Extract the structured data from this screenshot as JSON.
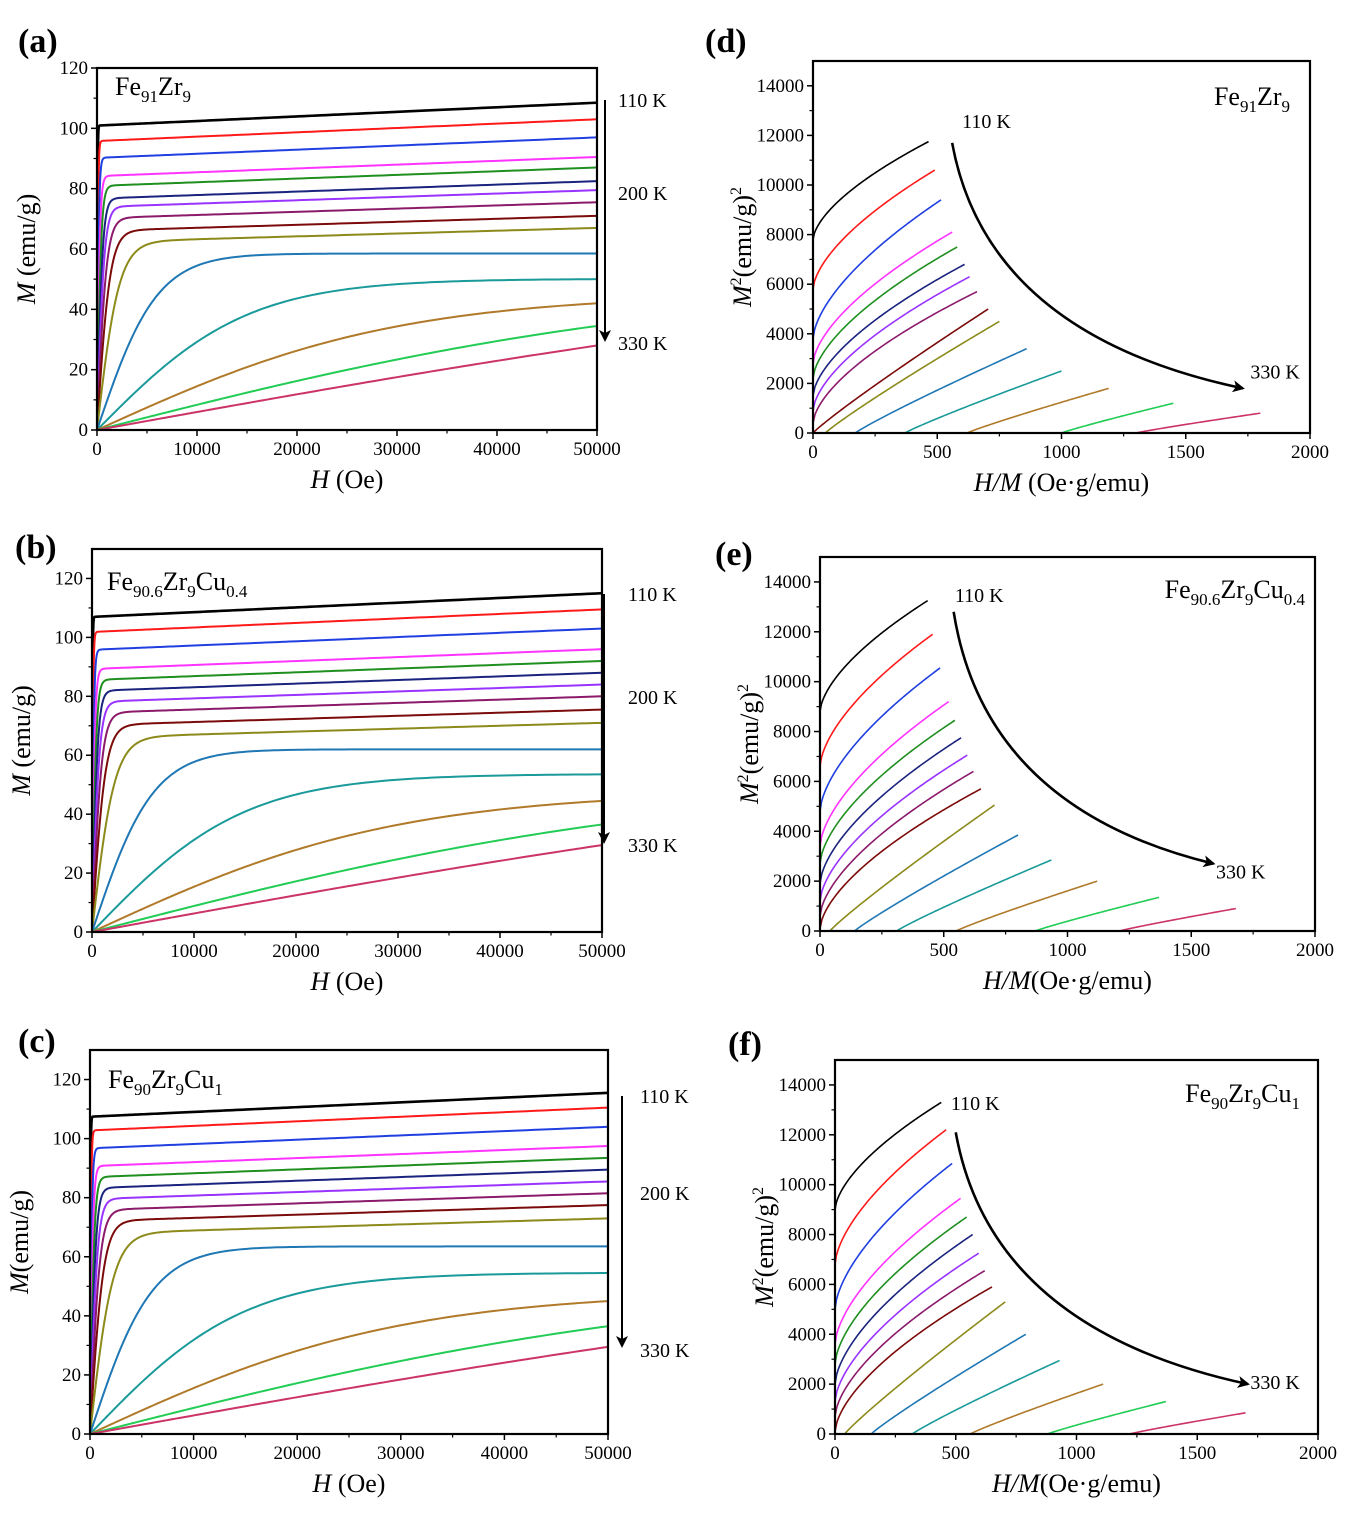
{
  "temperature_labels": {
    "first": "110 K",
    "middle": "200 K",
    "last": "330 K"
  },
  "curve_colors": [
    "#000000",
    "#ff1a1a",
    "#1f3fe0",
    "#ff33ff",
    "#1f8f1f",
    "#1a237e",
    "#9933ff",
    "#8b1a6b",
    "#7b0a0a",
    "#8c8a1a",
    "#1f77b4",
    "#1a9a9a",
    "#b07a2a",
    "#22cc55",
    "#cc3366"
  ],
  "chart_data": [
    {
      "type": "line",
      "panel": "(a)",
      "sample": {
        "base": "Fe",
        "parts": [
          {
            "sub": "91"
          },
          {
            "text": "Zr"
          },
          {
            "sub": "9"
          }
        ]
      },
      "xlabel": {
        "italic": "H",
        "rest": " (Oe)"
      },
      "ylabel": {
        "italic": "M",
        "rest": " (emu/g)"
      },
      "xlim": [
        0,
        50000
      ],
      "ylim": [
        0,
        120
      ],
      "xticks": [
        0,
        10000,
        20000,
        30000,
        40000,
        50000
      ],
      "yticks": [
        0,
        20,
        40,
        60,
        80,
        100,
        120
      ],
      "ms": [
        108.5,
        103,
        97,
        90.5,
        87,
        82.5,
        79.5,
        75.5,
        71,
        67,
        58.5,
        50,
        42,
        34.5,
        28
      ],
      "hc": [
        60,
        120,
        200,
        300,
        420,
        560,
        720,
        950,
        1300,
        2200,
        6000,
        15000,
        30000,
        60000,
        110000
      ],
      "grid": false
    },
    {
      "type": "line",
      "panel": "(b)",
      "sample": {
        "base": "Fe",
        "parts": [
          {
            "sub": "90.6"
          },
          {
            "text": "Zr"
          },
          {
            "sub": "9"
          },
          {
            "text": "Cu"
          },
          {
            "sub": "0.4"
          }
        ]
      },
      "xlabel": {
        "italic": "H",
        "rest": " (Oe)"
      },
      "ylabel": {
        "italic": "M",
        "rest": " (emu/g)"
      },
      "xlim": [
        0,
        50000
      ],
      "ylim": [
        0,
        130
      ],
      "xticks": [
        0,
        10000,
        20000,
        30000,
        40000,
        50000
      ],
      "yticks": [
        0,
        20,
        40,
        60,
        80,
        100,
        120
      ],
      "ms": [
        115,
        109.5,
        103,
        96,
        92,
        88,
        84,
        80,
        75.5,
        71,
        62,
        53.5,
        44.5,
        36.5,
        29.5
      ],
      "hc": [
        60,
        120,
        200,
        300,
        420,
        560,
        720,
        950,
        1300,
        2200,
        6000,
        15000,
        30000,
        60000,
        110000
      ],
      "grid": false
    },
    {
      "type": "line",
      "panel": "(c)",
      "sample": {
        "base": "Fe",
        "parts": [
          {
            "sub": "90"
          },
          {
            "text": "Zr"
          },
          {
            "sub": "9"
          },
          {
            "text": "Cu"
          },
          {
            "sub": "1"
          }
        ]
      },
      "xlabel": {
        "italic": "H",
        "rest": " (Oe)"
      },
      "ylabel": {
        "italic": "M",
        "rest": "(emu/g)"
      },
      "xlim": [
        0,
        50000
      ],
      "ylim": [
        0,
        130
      ],
      "xticks": [
        0,
        10000,
        20000,
        30000,
        40000,
        50000
      ],
      "yticks": [
        0,
        20,
        40,
        60,
        80,
        100,
        120
      ],
      "ms": [
        115.5,
        110.5,
        104,
        97.5,
        93.5,
        89.5,
        85.5,
        81.5,
        77.5,
        73,
        63.5,
        54.5,
        45,
        36.5,
        29.5
      ],
      "hc": [
        60,
        120,
        200,
        300,
        420,
        560,
        720,
        950,
        1300,
        2200,
        6000,
        15000,
        30000,
        60000,
        110000
      ],
      "grid": false
    },
    {
      "type": "line",
      "panel": "(d)",
      "sample": {
        "base": "Fe",
        "parts": [
          {
            "sub": "91"
          },
          {
            "text": "Zr"
          },
          {
            "sub": "9"
          }
        ]
      },
      "xlabel": {
        "italic": "H/M",
        "rest": " (Oe·g/emu)"
      },
      "ylabel": {
        "italic": "M",
        "sup": "2",
        "rest": "(emu/g)",
        "sup2": "2"
      },
      "xlim": [
        0,
        2000
      ],
      "ylim": [
        0,
        15000
      ],
      "xticks": [
        0,
        500,
        1000,
        1500,
        2000
      ],
      "yticks": [
        0,
        2000,
        4000,
        6000,
        8000,
        10000,
        12000,
        14000
      ],
      "curves": [
        {
          "x0": 0,
          "y0": 7800,
          "x1": 465,
          "y1": 11750
        },
        {
          "x0": 0,
          "y0": 5800,
          "x1": 490,
          "y1": 10600
        },
        {
          "x0": 0,
          "y0": 3800,
          "x1": 515,
          "y1": 9400
        },
        {
          "x0": 0,
          "y0": 2800,
          "x1": 560,
          "y1": 8100
        },
        {
          "x0": 0,
          "y0": 2200,
          "x1": 580,
          "y1": 7500
        },
        {
          "x0": 0,
          "y0": 1500,
          "x1": 610,
          "y1": 6800
        },
        {
          "x0": 0,
          "y0": 900,
          "x1": 630,
          "y1": 6300
        },
        {
          "x0": 0,
          "y0": 400,
          "x1": 660,
          "y1": 5700
        },
        {
          "x0": 0,
          "y0": 0,
          "x1": 705,
          "y1": 5000
        },
        {
          "x0": 50,
          "y0": 0,
          "x1": 750,
          "y1": 4500
        },
        {
          "x0": 170,
          "y0": 0,
          "x1": 860,
          "y1": 3400
        },
        {
          "x0": 370,
          "y0": 0,
          "x1": 1000,
          "y1": 2500
        },
        {
          "x0": 620,
          "y0": 0,
          "x1": 1190,
          "y1": 1800
        },
        {
          "x0": 1000,
          "y0": 0,
          "x1": 1450,
          "y1": 1200
        },
        {
          "x0": 1300,
          "y0": 0,
          "x1": 1800,
          "y1": 800
        }
      ],
      "arrow": {
        "start": [
          560,
          11700
        ],
        "end": [
          1730,
          1800
        ]
      },
      "label_first_pos": [
        600,
        12300
      ],
      "label_last_pos": [
        1760,
        2200
      ],
      "grid": false
    },
    {
      "type": "line",
      "panel": "(e)",
      "sample": {
        "base": "Fe",
        "parts": [
          {
            "sub": "90.6"
          },
          {
            "text": "Zr"
          },
          {
            "sub": "9"
          },
          {
            "text": "Cu"
          },
          {
            "sub": "0.4"
          }
        ]
      },
      "xlabel": {
        "italic": "H/M",
        "rest": "(Oe·g/emu)"
      },
      "ylabel": {
        "italic": "M",
        "sup": "2",
        "rest": "(emu/g)",
        "sup2": "2"
      },
      "xlim": [
        0,
        2000
      ],
      "ylim": [
        0,
        15000
      ],
      "xticks": [
        0,
        500,
        1000,
        1500,
        2000
      ],
      "yticks": [
        0,
        2000,
        4000,
        6000,
        8000,
        10000,
        12000,
        14000
      ],
      "curves": [
        {
          "x0": 0,
          "y0": 8800,
          "x1": 435,
          "y1": 13250
        },
        {
          "x0": 0,
          "y0": 6600,
          "x1": 455,
          "y1": 11900
        },
        {
          "x0": 0,
          "y0": 4800,
          "x1": 485,
          "y1": 10550
        },
        {
          "x0": 0,
          "y0": 3400,
          "x1": 520,
          "y1": 9200
        },
        {
          "x0": 0,
          "y0": 2700,
          "x1": 545,
          "y1": 8450
        },
        {
          "x0": 0,
          "y0": 1900,
          "x1": 570,
          "y1": 7750
        },
        {
          "x0": 0,
          "y0": 1200,
          "x1": 595,
          "y1": 7050
        },
        {
          "x0": 0,
          "y0": 600,
          "x1": 620,
          "y1": 6400
        },
        {
          "x0": 0,
          "y0": 100,
          "x1": 650,
          "y1": 5700
        },
        {
          "x0": 40,
          "y0": 0,
          "x1": 705,
          "y1": 5050
        },
        {
          "x0": 140,
          "y0": 0,
          "x1": 800,
          "y1": 3850
        },
        {
          "x0": 310,
          "y0": 0,
          "x1": 935,
          "y1": 2850
        },
        {
          "x0": 550,
          "y0": 0,
          "x1": 1120,
          "y1": 2000
        },
        {
          "x0": 870,
          "y0": 0,
          "x1": 1370,
          "y1": 1350
        },
        {
          "x0": 1210,
          "y0": 0,
          "x1": 1680,
          "y1": 900
        }
      ],
      "arrow": {
        "start": [
          540,
          12800
        ],
        "end": [
          1590,
          2700
        ]
      },
      "label_first_pos": [
        545,
        13200
      ],
      "label_last_pos": [
        1600,
        2100
      ],
      "grid": false
    },
    {
      "type": "line",
      "panel": "(f)",
      "sample": {
        "base": "Fe",
        "parts": [
          {
            "sub": "90"
          },
          {
            "text": "Zr"
          },
          {
            "sub": "9"
          },
          {
            "text": "Cu"
          },
          {
            "sub": "1"
          }
        ]
      },
      "xlabel": {
        "italic": "H/M",
        "rest": "(Oe·g/emu)"
      },
      "ylabel": {
        "italic": "M",
        "sup": "2",
        "rest": "(emu/g)",
        "sup2": "2"
      },
      "xlim": [
        0,
        2000
      ],
      "ylim": [
        0,
        15000
      ],
      "xticks": [
        0,
        500,
        1000,
        1500,
        2000
      ],
      "yticks": [
        0,
        2000,
        4000,
        6000,
        8000,
        10000,
        12000,
        14000
      ],
      "curves": [
        {
          "x0": 0,
          "y0": 9000,
          "x1": 440,
          "y1": 13300
        },
        {
          "x0": 0,
          "y0": 6800,
          "x1": 460,
          "y1": 12200
        },
        {
          "x0": 0,
          "y0": 5000,
          "x1": 485,
          "y1": 10850
        },
        {
          "x0": 0,
          "y0": 3600,
          "x1": 520,
          "y1": 9450
        },
        {
          "x0": 0,
          "y0": 2800,
          "x1": 545,
          "y1": 8700
        },
        {
          "x0": 0,
          "y0": 2000,
          "x1": 570,
          "y1": 8000
        },
        {
          "x0": 0,
          "y0": 1300,
          "x1": 595,
          "y1": 7250
        },
        {
          "x0": 0,
          "y0": 700,
          "x1": 620,
          "y1": 6550
        },
        {
          "x0": 0,
          "y0": 100,
          "x1": 650,
          "y1": 5900
        },
        {
          "x0": 40,
          "y0": 0,
          "x1": 705,
          "y1": 5300
        },
        {
          "x0": 150,
          "y0": 0,
          "x1": 790,
          "y1": 4000
        },
        {
          "x0": 320,
          "y0": 0,
          "x1": 930,
          "y1": 2950
        },
        {
          "x0": 560,
          "y0": 0,
          "x1": 1110,
          "y1": 2000
        },
        {
          "x0": 880,
          "y0": 0,
          "x1": 1370,
          "y1": 1300
        },
        {
          "x0": 1220,
          "y0": 0,
          "x1": 1700,
          "y1": 850
        }
      ],
      "arrow": {
        "start": [
          500,
          12100
        ],
        "end": [
          1710,
          2000
        ]
      },
      "label_first_pos": [
        480,
        13000
      ],
      "label_last_pos": [
        1720,
        1800
      ],
      "grid": false
    }
  ]
}
